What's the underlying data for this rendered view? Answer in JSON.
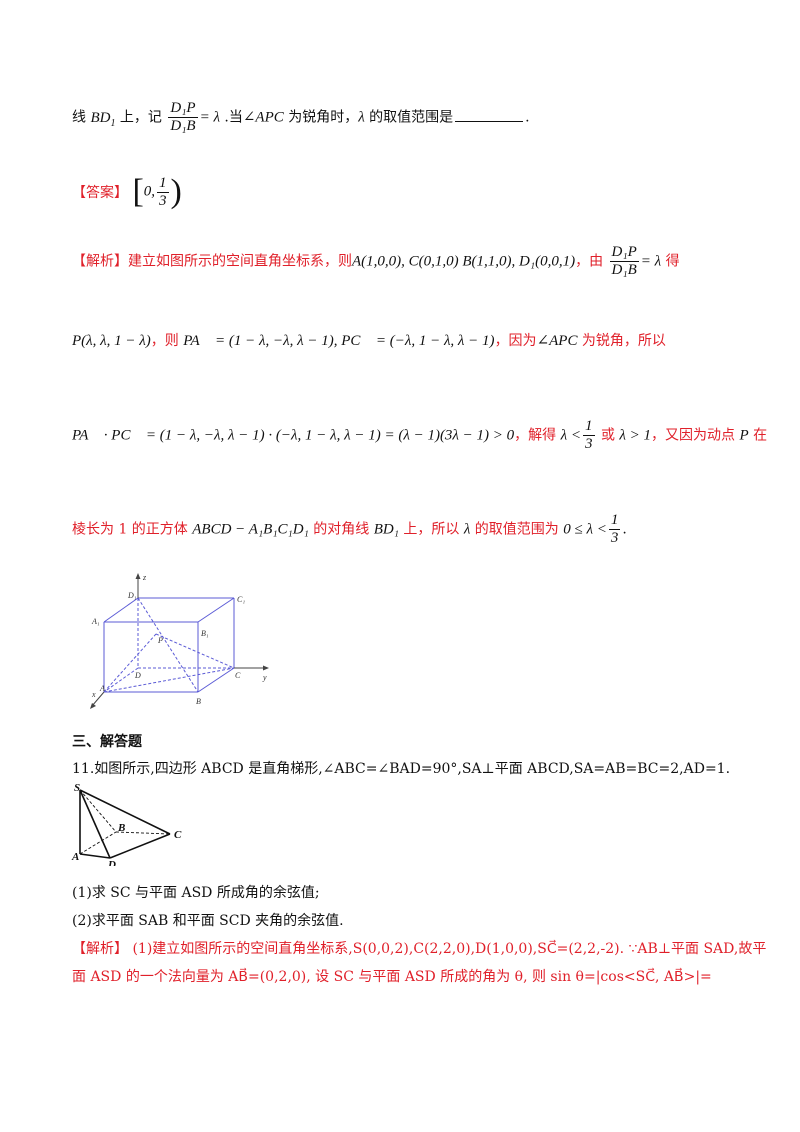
{
  "q10_line": {
    "pre": "线 ",
    "bd1": "BD",
    "bd1_sub": "1",
    "mid": " 上，记",
    "frac_num": "D₁P",
    "frac_den": "D₁B",
    "eq": "= λ",
    "when": ".当",
    "angle": "∠APC",
    "acute": " 为锐角时，",
    "lambda": "λ",
    "range": " 的取值范围是",
    "end": "."
  },
  "answer": {
    "label": "【答案】",
    "value_left": "[",
    "value_zero": "0,",
    "value_num": "1",
    "value_den": "3",
    "value_right": ")"
  },
  "analysis10": {
    "label": "【解析】",
    "line1_text": "建立如图所示的空间直角坐标系，则",
    "line1_math": "A(1,0,0), C(0,1,0) B(1,1,0), D₁(0,0,1)",
    "line1_by": "，由",
    "line1_frac_num": "D₁P",
    "line1_frac_den": "D₁B",
    "line1_eq": "= λ",
    "line1_get": " 得",
    "line2_math_a": "P(λ, λ, 1 − λ)",
    "line2_then": "，则",
    "line2_math_b": "PA⃗ = (1 − λ, −λ, λ − 1), PC⃗ = (−λ, 1 − λ, λ − 1)",
    "line2_because": "，因为",
    "line2_angle": "∠APC",
    "line2_acute": " 为锐角，所以",
    "line3_math": "PA⃗ · PC⃗ = (1 − λ, −λ, λ − 1) · (−λ, 1 − λ, λ − 1) = (λ − 1)(3λ − 1) > 0",
    "line3_solve": "，解得",
    "line3_lt": "λ <",
    "line3_num": "1",
    "line3_den": "3",
    "line3_or": " 或 ",
    "line3_gt": "λ > 1",
    "line3_also": "，又因为动点 ",
    "line3_p": "P",
    "line3_at": " 在",
    "line4_text_a": "棱长为 1 的正方体 ",
    "line4_cube": "ABCD − A₁B₁C₁D₁",
    "line4_text_b": " 的对角线 ",
    "line4_bd1": "BD₁",
    "line4_text_c": " 上，所以 ",
    "line4_lambda": "λ",
    "line4_text_d": " 的取值范围为",
    "line4_range": "0 ≤ λ <",
    "line4_num": "1",
    "line4_den": "3",
    "line4_end": "."
  },
  "cube_labels": {
    "z": "z",
    "y": "y",
    "x": "x",
    "D1": "D₁",
    "C1": "C₁",
    "A1": "A₁",
    "B1": "B₁",
    "P": "P",
    "D": "D",
    "C": "C",
    "A": "A",
    "B": "B"
  },
  "section3": "三、解答题",
  "q11": {
    "stem": "11.如图所示,四边形 ABCD 是直角梯形,∠ABC=∠BAD=90°,SA⊥平面 ABCD,SA=AB=BC=2,AD=1.",
    "part1": "(1)求 SC 与平面 ASD 所成角的余弦值;",
    "part2": "(2)求平面 SAB 和平面 SCD 夹角的余弦值.",
    "label": "【解析】",
    "line1": " (1)建立如图所示的空间直角坐标系,S(0,0,2),C(2,2,0),D(1,0,0),SC⃗=(2,2,-2). ∵AB⊥平面 SAD,故平",
    "line2": "面 ASD 的一个法向量为 AB⃗=(0,2,0), 设 SC 与平面 ASD 所成的角为 θ, 则 sin θ=|cos<SC⃗, AB⃗>|="
  },
  "pyramid_labels": {
    "S": "S",
    "B": "B",
    "C": "C",
    "A": "A",
    "D": "D"
  }
}
